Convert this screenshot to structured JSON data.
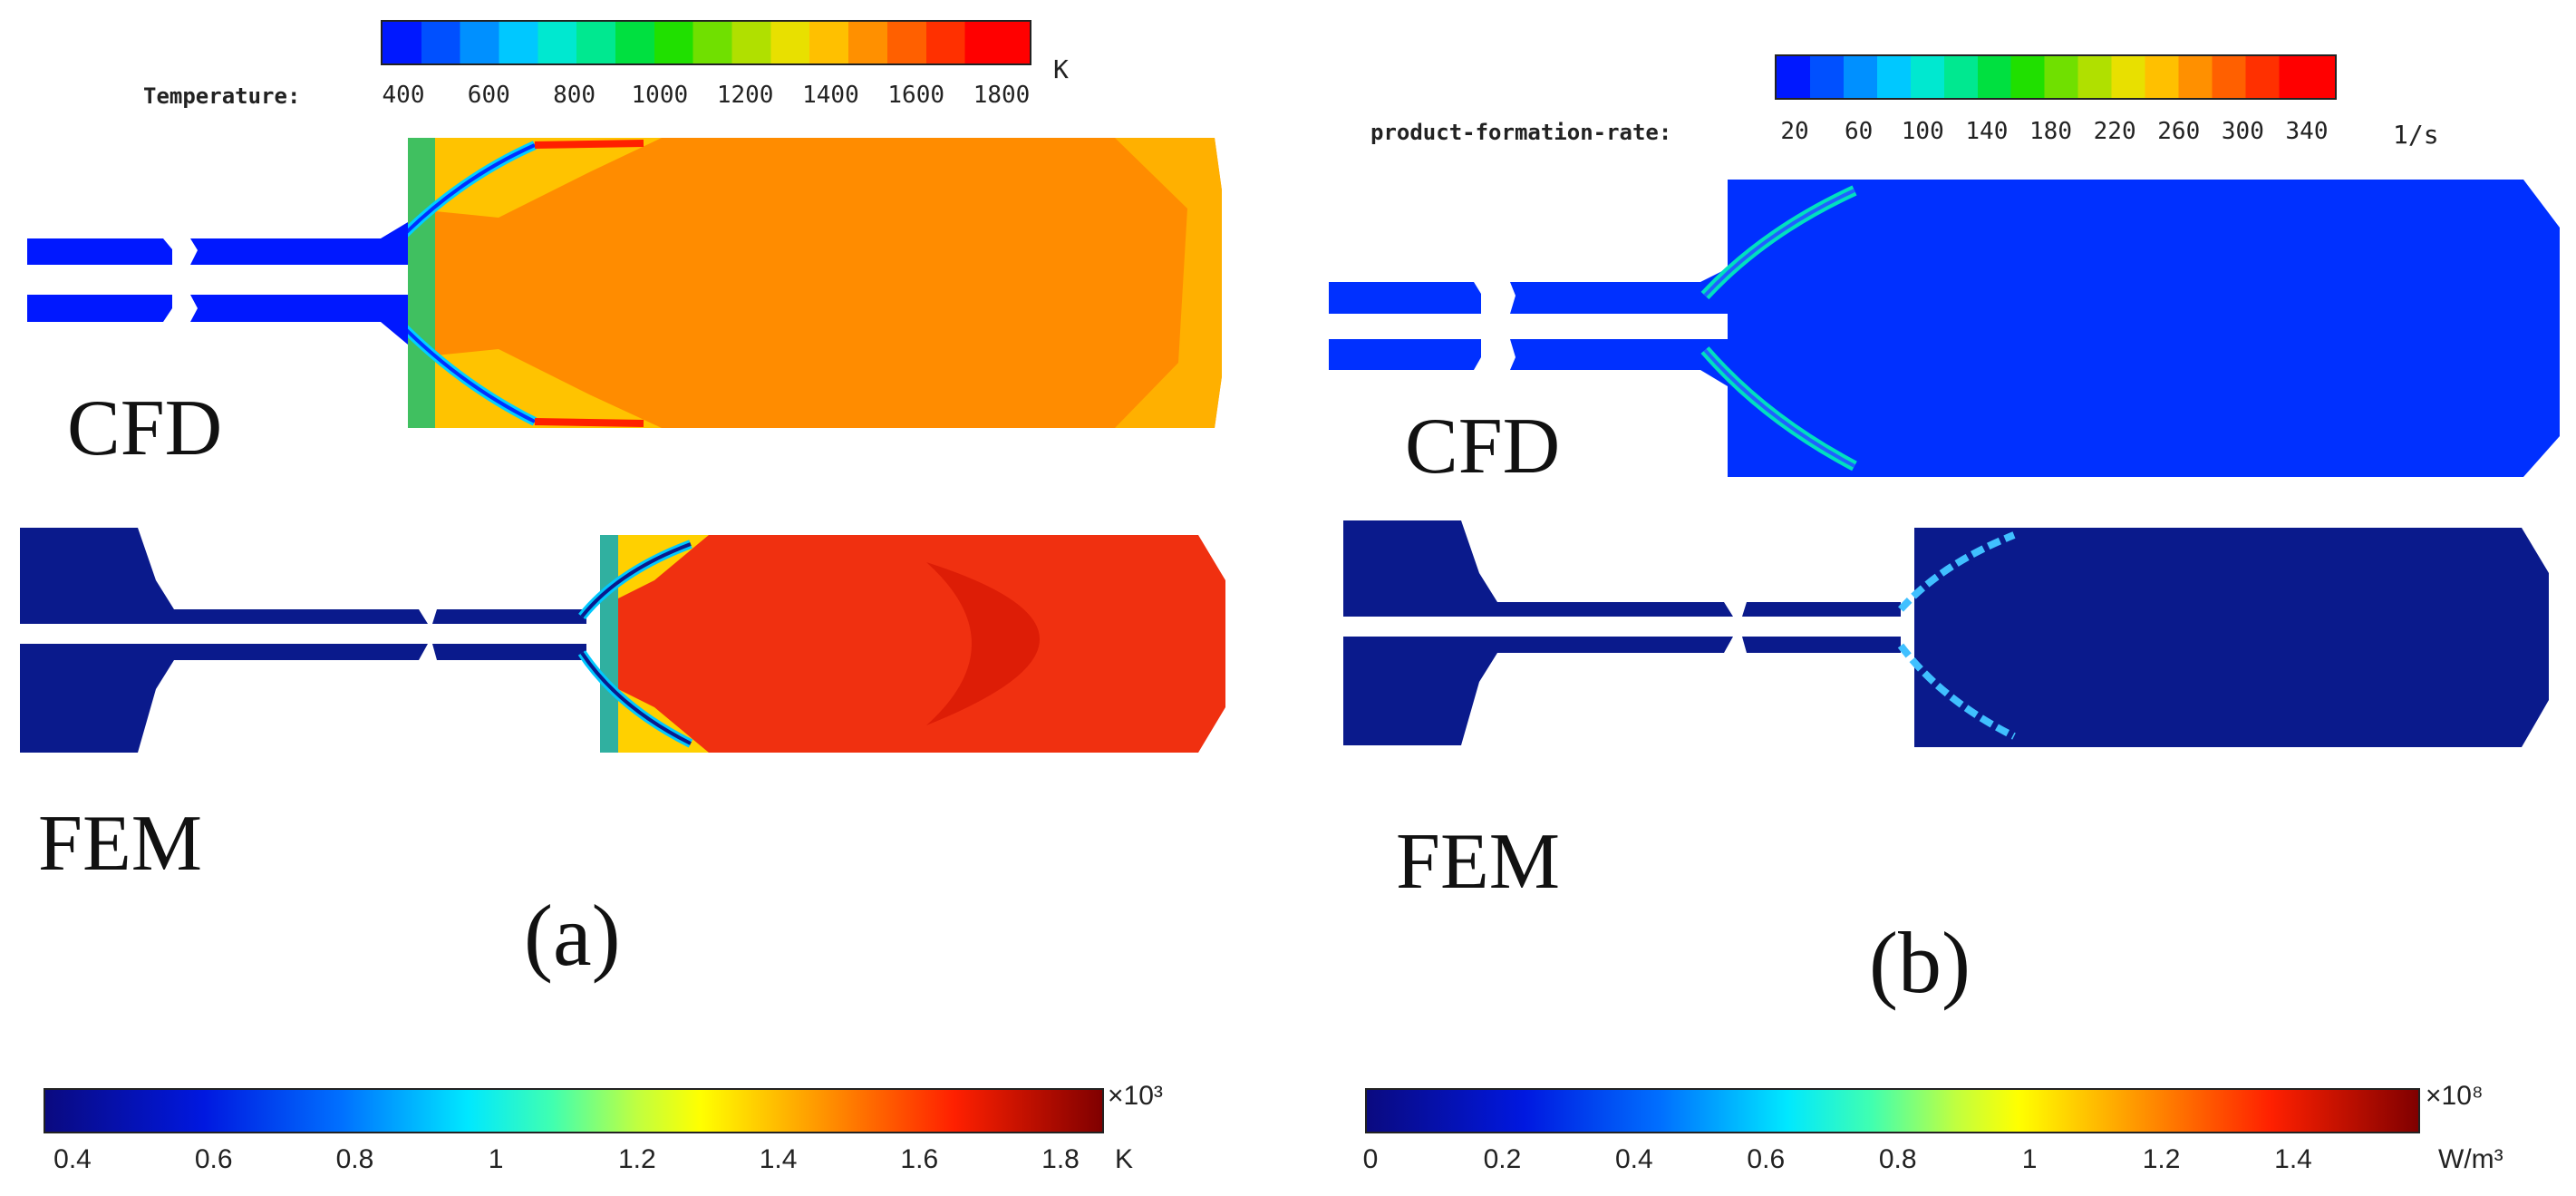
{
  "panel_a": {
    "label": "(a)",
    "cfd_label": "CFD",
    "fem_label": "FEM",
    "cfd_colorbar": {
      "title": "Temperature:",
      "unit": "K",
      "ticks": [
        "400",
        "600",
        "800",
        "1000",
        "1200",
        "1400",
        "1600",
        "1800"
      ]
    },
    "fem_colorbar": {
      "exponent": "×10³",
      "unit": "K",
      "ticks": [
        "0.4",
        "0.6",
        "0.8",
        "1",
        "1.2",
        "1.4",
        "1.6",
        "1.8"
      ]
    },
    "colors": {
      "cfd_core": "#ff8c00",
      "fem_core": "#f03010",
      "wall": "#0018ff",
      "fem_wall": "#0a1a8c"
    }
  },
  "panel_b": {
    "label": "(b)",
    "cfd_label": "CFD",
    "fem_label": "FEM",
    "cfd_colorbar": {
      "title": "product-formation-rate:",
      "unit": "1/s",
      "ticks": [
        "20",
        "60",
        "100",
        "140",
        "180",
        "220",
        "260",
        "300",
        "340"
      ]
    },
    "fem_colorbar": {
      "exponent": "×10⁸",
      "unit": "W/m³",
      "ticks": [
        "0",
        "0.2",
        "0.4",
        "0.6",
        "0.8",
        "1",
        "1.2",
        "1.4"
      ]
    },
    "colors": {
      "cfd_core": "#0030ff",
      "fem_core": "#0a1a8c"
    }
  }
}
